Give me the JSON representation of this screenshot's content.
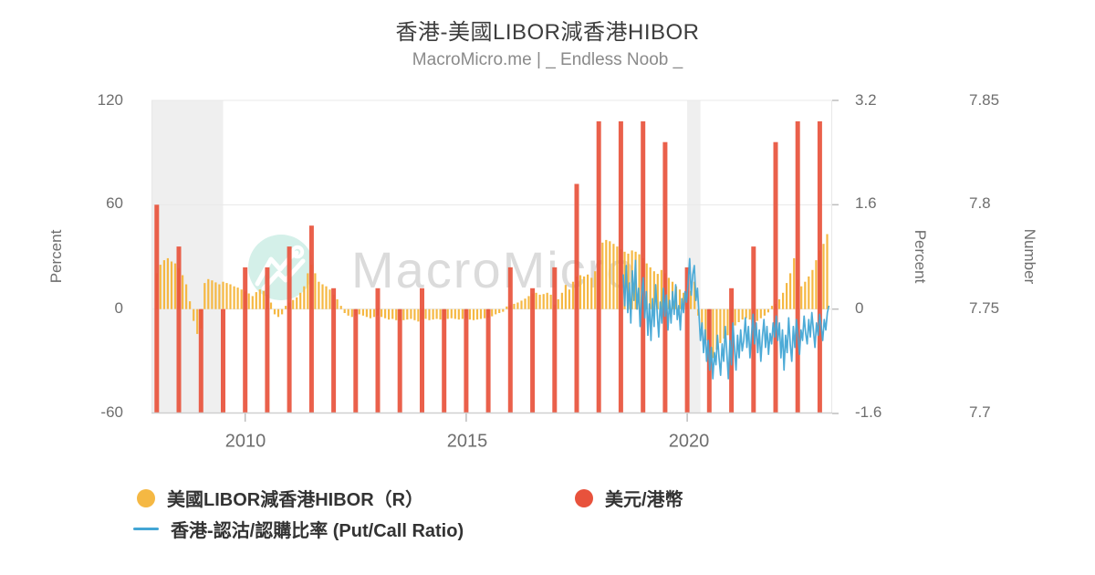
{
  "page": {
    "title": "香港-美國LIBOR減香港HIBOR",
    "subtitle": "MacroMicro.me | _ Endless Noob _"
  },
  "watermark": {
    "text": "MacroMicro",
    "logo": "macromicro-mountain-logo",
    "circle_color": "#C7EBE2",
    "text_color": "#D8D8D8"
  },
  "colors": {
    "libor_hibor_bar": "#F5B843",
    "usd_hkd_bar": "#E8523C",
    "put_call_line": "#43A6D5",
    "grid": "#E8E8E8",
    "axis_line": "#CFCFCF",
    "tick_mark": "#BDBDBD",
    "recession_band": "#EFEFEF",
    "title_text": "#3d3d3d",
    "subtitle_text": "#8a8a8a",
    "tick_text": "#6e6e6e",
    "legend_text": "#333333"
  },
  "axes": {
    "left": {
      "label": "Percent",
      "tick_labels": [
        "120",
        "60",
        "0",
        "-60"
      ]
    },
    "right_percent": {
      "label": "Percent",
      "tick_labels": [
        "3.2",
        "1.6",
        "0",
        "-1.6"
      ]
    },
    "right_number": {
      "label": "Number",
      "tick_labels": [
        "7.85",
        "7.8",
        "7.75",
        "7.7"
      ]
    },
    "x": {
      "tick_labels": [
        "2010",
        "2015",
        "2020"
      ]
    }
  },
  "legend": {
    "items": [
      {
        "label": "美國LIBOR減香港HIBOR（R）",
        "marker": "circle",
        "color": "#F5B843"
      },
      {
        "label": "美元/港幣",
        "marker": "circle",
        "color": "#E8523C"
      },
      {
        "label": "香港-認沽/認購比率 (Put/Call Ratio)",
        "marker": "line",
        "color": "#43A6D5"
      }
    ]
  },
  "chart_data": {
    "type": "mixed",
    "x_axis": {
      "min": 2007.88,
      "max": 2023.28,
      "ticks": [
        2010,
        2015,
        2020
      ]
    },
    "left_axis": {
      "label": "Percent",
      "min": -60,
      "max": 120,
      "ticks": [
        120,
        60,
        0,
        -60
      ]
    },
    "right_axis": {
      "label": "Percent",
      "min": -1.6,
      "max": 3.2,
      "ticks": [
        3.2,
        1.6,
        0,
        -1.6
      ]
    },
    "number_axis": {
      "label": "Number",
      "min": 7.7,
      "max": 7.85,
      "ticks": [
        7.85,
        7.8,
        7.75,
        7.7
      ]
    },
    "recession_bands": [
      [
        2007.88,
        2009.5
      ],
      [
        2020.0,
        2020.3
      ]
    ],
    "series": [
      {
        "name": "美國LIBOR減香港HIBOR（R）",
        "type": "bar",
        "axis": "right_percent",
        "color": "#F5B843",
        "start": 2008.0,
        "step": 0.083333,
        "values": [
          0.55,
          0.68,
          0.75,
          0.78,
          0.73,
          0.7,
          0.63,
          0.52,
          0.38,
          0.12,
          -0.18,
          -0.38,
          -0.3,
          0.4,
          0.46,
          0.44,
          0.41,
          0.38,
          0.42,
          0.4,
          0.38,
          0.35,
          0.33,
          0.3,
          0.27,
          0.24,
          0.2,
          0.26,
          0.3,
          0.28,
          0.22,
          0.1,
          -0.08,
          -0.12,
          -0.08,
          0.05,
          0.1,
          0.14,
          0.18,
          0.25,
          0.35,
          0.55,
          0.68,
          0.55,
          0.42,
          0.38,
          0.35,
          0.3,
          0.22,
          0.15,
          0.05,
          -0.06,
          -0.1,
          -0.12,
          -0.1,
          -0.08,
          -0.1,
          -0.12,
          -0.14,
          -0.12,
          -0.1,
          -0.12,
          -0.14,
          -0.16,
          -0.15,
          -0.17,
          -0.18,
          -0.17,
          -0.16,
          -0.15,
          -0.17,
          -0.19,
          -0.16,
          -0.15,
          -0.17,
          -0.16,
          -0.15,
          -0.16,
          -0.17,
          -0.15,
          -0.14,
          -0.15,
          -0.16,
          -0.15,
          -0.14,
          -0.16,
          -0.17,
          -0.16,
          -0.15,
          -0.14,
          -0.13,
          -0.11,
          -0.08,
          -0.06,
          -0.04,
          0.04,
          0.06,
          0.08,
          0.1,
          0.13,
          0.16,
          0.2,
          0.24,
          0.25,
          0.22,
          0.23,
          0.25,
          0.22,
          0.07,
          0.15,
          0.25,
          0.37,
          0.3,
          0.42,
          0.5,
          0.52,
          0.5,
          0.53,
          0.48,
          0.58,
          0.75,
          1.02,
          1.06,
          1.04,
          1.0,
          0.96,
          0.92,
          0.88,
          0.85,
          0.9,
          0.88,
          0.84,
          0.78,
          0.7,
          0.64,
          0.58,
          0.54,
          0.6,
          0.55,
          0.48,
          0.42,
          0.35,
          0.3,
          0.25,
          0.2,
          0.28,
          0.42,
          -0.1,
          -0.3,
          -0.48,
          -0.65,
          -0.75,
          -0.62,
          -0.52,
          -0.45,
          -0.4,
          -0.32,
          -0.25,
          -0.2,
          -0.16,
          -0.14,
          -0.16,
          -0.2,
          -0.18,
          -0.14,
          -0.1,
          -0.05,
          0.05,
          0.08,
          0.15,
          0.25,
          0.4,
          0.55,
          0.78,
          0.45,
          0.35,
          0.42,
          0.5,
          0.6,
          0.75,
          0.9,
          1.0,
          1.15
        ]
      },
      {
        "name": "美元/港幣",
        "type": "bar",
        "axis": "number",
        "color": "#E8523C",
        "start": 2008.0,
        "step": 0.5,
        "values": [
          7.8,
          7.78,
          7.75,
          7.75,
          7.77,
          7.77,
          7.78,
          7.79,
          7.76,
          7.75,
          7.76,
          7.75,
          7.76,
          7.75,
          7.75,
          7.75,
          7.77,
          7.76,
          7.77,
          7.81,
          7.84,
          7.84,
          7.84,
          7.83,
          7.77,
          7.75,
          7.76,
          7.78,
          7.83,
          7.84,
          7.84
        ]
      },
      {
        "name": "香港-認沽/認購比率 (Put/Call Ratio)",
        "type": "line",
        "axis": "left_percent",
        "color": "#43A6D5",
        "start": 2018.55,
        "step": 0.035,
        "values": [
          20,
          2,
          25,
          -2,
          15,
          -8,
          22,
          5,
          28,
          0,
          12,
          -10,
          8,
          18,
          -5,
          10,
          -15,
          3,
          -18,
          6,
          -10,
          14,
          -2,
          -16,
          4,
          -8,
          12,
          -4,
          8,
          -12,
          5,
          -8,
          10,
          -3,
          14,
          -6,
          2,
          -12,
          6,
          -2,
          10,
          4,
          15,
          29,
          8,
          20,
          25,
          5,
          12,
          -2,
          -18,
          -8,
          -25,
          -12,
          -30,
          -18,
          -35,
          -22,
          -40,
          -25,
          -32,
          -15,
          -28,
          -38,
          -20,
          -30,
          -10,
          -25,
          -40,
          -18,
          -32,
          -8,
          -22,
          -35,
          -15,
          -28,
          -12,
          -24,
          -18,
          -5,
          -22,
          -10,
          -28,
          -15,
          -3,
          -20,
          -8,
          -25,
          -12,
          -30,
          -16,
          -6,
          -22,
          -10,
          -26,
          -14,
          -20,
          -8,
          -16,
          -4,
          -18,
          -8,
          -28,
          -12,
          -35,
          -15,
          -25,
          -5,
          -20,
          -30,
          -10,
          -22,
          -6,
          -16,
          -26,
          -12,
          -18,
          -4,
          -14,
          -20,
          -6,
          -16,
          -2,
          -12,
          -22,
          -8,
          -15,
          -3,
          -10,
          -18,
          -6,
          -12,
          -2,
          2
        ]
      }
    ]
  }
}
